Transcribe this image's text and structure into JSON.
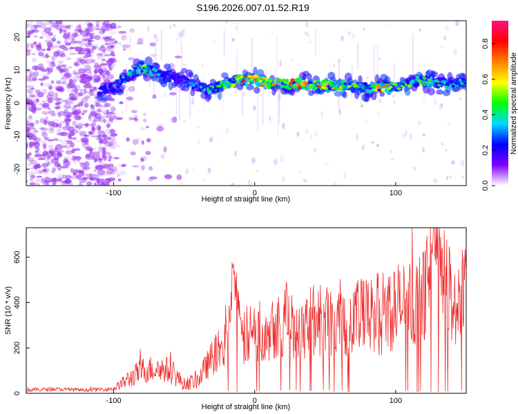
{
  "chart_data": [
    {
      "type": "heatmap",
      "title": "S196.2026.007.01.52.R19",
      "xlabel": "Height of straight line (km)",
      "ylabel": "Frequency (Hz)",
      "xlim": [
        -162,
        150
      ],
      "ylim": [
        -25,
        25
      ],
      "xticks": [
        -100,
        0,
        100
      ],
      "yticks": [
        -20,
        -10,
        0,
        10,
        20
      ],
      "colorbar": {
        "label": "Normalized spectral amplitude",
        "range": [
          0,
          0.93
        ],
        "ticks": [
          "0.0",
          "0.2",
          "0.4",
          "0.6",
          "0.8"
        ],
        "tick_values": [
          0,
          0.2,
          0.4,
          0.6,
          0.8
        ],
        "colors": [
          "#ffffff",
          "#8000ff",
          "#0000ff",
          "#00d8ff",
          "#00ff00",
          "#ffff00",
          "#ff8000",
          "#ff0000",
          "#ff1080"
        ]
      },
      "ridge": {
        "x": [
          -110,
          -100,
          -90,
          -80,
          -70,
          -60,
          -50,
          -40,
          -30,
          -20,
          -10,
          0,
          10,
          20,
          30,
          40,
          50,
          60,
          70,
          80,
          90,
          100,
          110,
          120,
          130,
          140,
          150
        ],
        "freq": [
          4,
          5,
          8,
          11,
          9,
          8,
          7,
          5,
          4,
          6,
          7,
          7,
          6,
          6,
          6,
          6,
          5.5,
          5.5,
          5,
          4.5,
          4.5,
          5,
          6,
          7,
          6,
          6,
          6
        ],
        "amplitude": [
          0.3,
          0.35,
          0.45,
          0.6,
          0.5,
          0.35,
          0.3,
          0.4,
          0.5,
          0.55,
          0.8,
          0.85,
          0.75,
          0.7,
          0.85,
          0.6,
          0.9,
          0.7,
          0.6,
          0.55,
          0.85,
          0.5,
          0.55,
          0.6,
          0.5,
          0.5,
          0.45
        ]
      },
      "colors": {
        "noise": "#9a3cf0",
        "background": "#ffffff"
      }
    },
    {
      "type": "line",
      "xlabel": "Height of straight line (km)",
      "ylabel": "SNR (10 * v/v)",
      "xlim": [
        -162,
        150
      ],
      "ylim": [
        0,
        730
      ],
      "xticks": [
        -100,
        0,
        100
      ],
      "yticks": [
        0,
        200,
        400,
        600
      ],
      "series": [
        {
          "name": "SNR",
          "color": "#ee2a2a",
          "x": [
            -162,
            -140,
            -120,
            -100,
            -90,
            -80,
            -70,
            -60,
            -50,
            -40,
            -30,
            -20,
            -15,
            -10,
            0,
            10,
            20,
            30,
            40,
            50,
            60,
            70,
            80,
            90,
            100,
            110,
            120,
            128,
            135,
            140,
            150
          ],
          "y": [
            15,
            18,
            15,
            20,
            60,
            100,
            110,
            100,
            40,
            60,
            160,
            220,
            560,
            240,
            260,
            300,
            320,
            300,
            320,
            310,
            330,
            340,
            330,
            360,
            380,
            400,
            420,
            730,
            500,
            400,
            400
          ],
          "spread": [
            10,
            8,
            8,
            10,
            40,
            60,
            60,
            60,
            30,
            40,
            80,
            120,
            100,
            130,
            150,
            160,
            160,
            160,
            170,
            170,
            180,
            180,
            180,
            190,
            200,
            200,
            210,
            150,
            220,
            230,
            240
          ]
        }
      ]
    }
  ]
}
